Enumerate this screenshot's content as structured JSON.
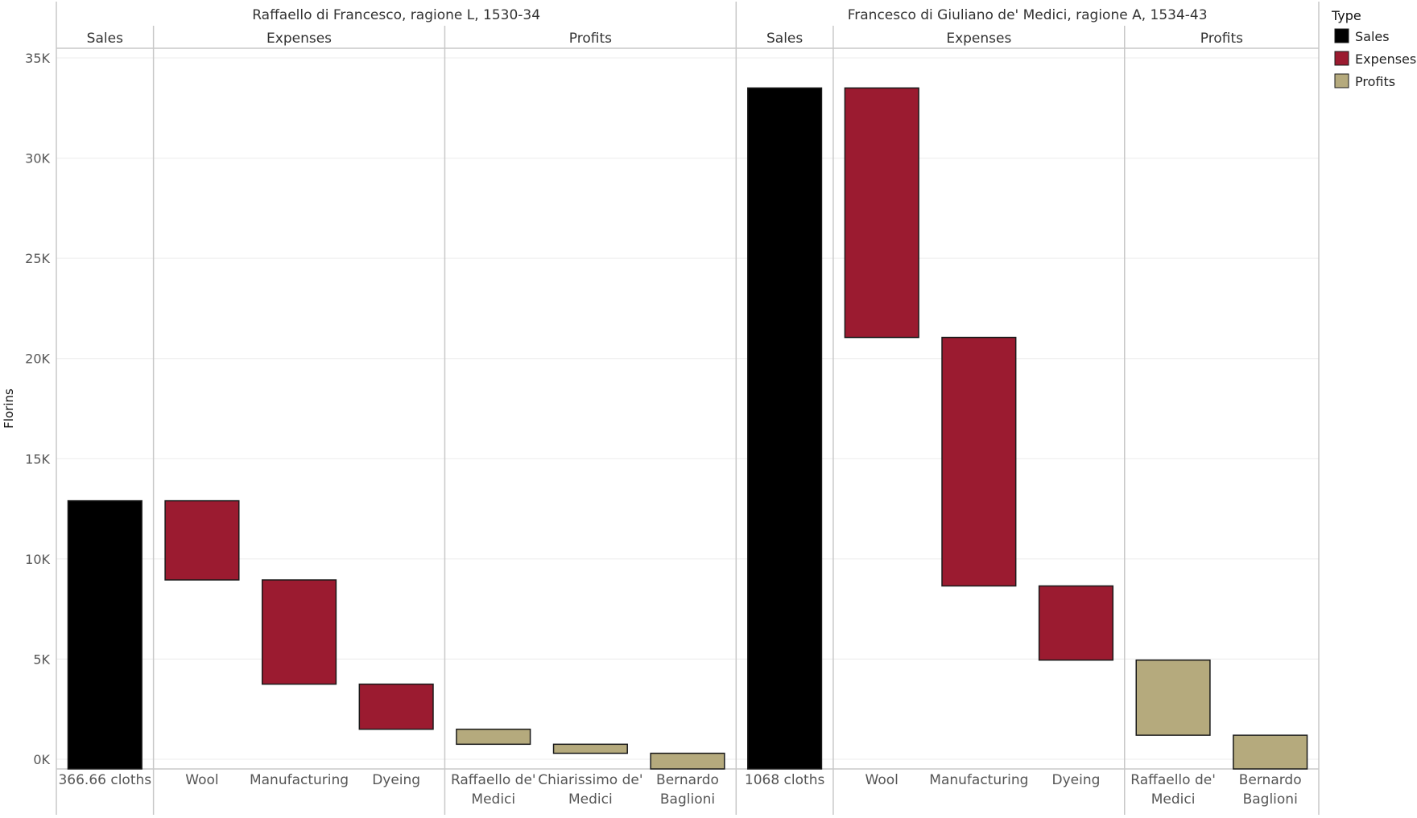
{
  "chart_data": {
    "type": "bar",
    "subtype": "waterfall",
    "ylabel": "Florins",
    "ylim": [
      0,
      35000
    ],
    "yticks": [
      "0K",
      "5K",
      "10K",
      "15K",
      "20K",
      "25K",
      "30K",
      "35K"
    ],
    "grid": true,
    "legend": {
      "title": "Type",
      "position": "top-right",
      "entries": [
        {
          "label": "Sales",
          "color": "#000000"
        },
        {
          "label": "Expenses",
          "color": "#9b1b30"
        },
        {
          "label": "Profits",
          "color": "#b5aa7d"
        }
      ]
    },
    "panels": [
      {
        "title": "Raffaello di Francesco, ragione L, 1530-34",
        "groups": [
          {
            "name": "Sales",
            "type": "Sales",
            "bars": [
              {
                "label": "366.66 cloths",
                "start": 0,
                "end": 12900
              }
            ]
          },
          {
            "name": "Expenses",
            "type": "Expenses",
            "bars": [
              {
                "label": "Wool",
                "start": 8950,
                "end": 12900
              },
              {
                "label": "Manufacturing",
                "start": 3750,
                "end": 8950
              },
              {
                "label": "Dyeing",
                "start": 1500,
                "end": 3750
              }
            ]
          },
          {
            "name": "Profits",
            "type": "Profits",
            "bars": [
              {
                "label": "Raffaello de' Medici",
                "start": 750,
                "end": 1500
              },
              {
                "label": "Chiarissimo de' Medici",
                "start": 300,
                "end": 750
              },
              {
                "label": "Bernardo Baglioni",
                "start": 0,
                "end": 300
              }
            ]
          }
        ]
      },
      {
        "title": "Francesco di Giuliano de' Medici, ragione A, 1534-43",
        "groups": [
          {
            "name": "Sales",
            "type": "Sales",
            "bars": [
              {
                "label": "1068 cloths",
                "start": 0,
                "end": 33500
              }
            ]
          },
          {
            "name": "Expenses",
            "type": "Expenses",
            "bars": [
              {
                "label": "Wool",
                "start": 21050,
                "end": 33500
              },
              {
                "label": "Manufacturing",
                "start": 8650,
                "end": 21050
              },
              {
                "label": "Dyeing",
                "start": 4950,
                "end": 8650
              }
            ]
          },
          {
            "name": "Profits",
            "type": "Profits",
            "bars": [
              {
                "label": "Raffaello de' Medici",
                "start": 1200,
                "end": 4950
              },
              {
                "label": "Bernardo Baglioni",
                "start": 0,
                "end": 1200
              }
            ]
          }
        ]
      }
    ]
  }
}
